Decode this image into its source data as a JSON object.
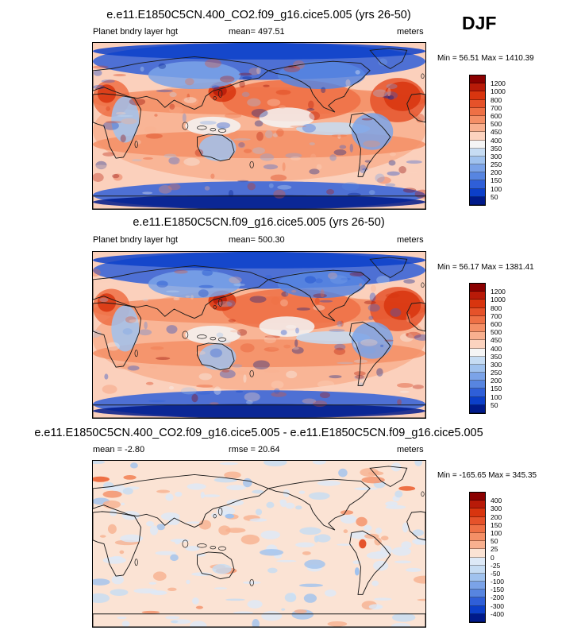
{
  "season": "DJF",
  "land_color": "#1a1a1a",
  "panels": [
    {
      "title": "e.e11.E1850C5CN.400_CO2.f09_g16.cice5.005 (yrs 26-50)",
      "variable": "Planet bndry layer hgt",
      "stat": "mean= 497.51",
      "units": "meters",
      "minmax": "Min =  56.51 Max = 1410.39",
      "kind": "abs"
    },
    {
      "title": "e.e11.E1850C5CN.f09_g16.cice5.005 (yrs 26-50)",
      "variable": "Planet bndry layer hgt",
      "stat": "mean= 500.30",
      "units": "meters",
      "minmax": "Min =  56.17 Max = 1381.41",
      "kind": "abs"
    },
    {
      "title": "e.e11.E1850C5CN.400_CO2.f09_g16.cice5.005 - e.e11.E1850C5CN.f09_g16.cice5.005",
      "variable": "mean =  -2.80",
      "stat": "rmse =  20.64",
      "units": "meters",
      "minmax": "Min = -165.65 Max = 345.35",
      "kind": "diff"
    }
  ],
  "chart_data": [
    {
      "type": "heatmap",
      "title": "e.e11.E1850C5CN.400_CO2.f09_g16.cice5.005 (yrs 26-50)",
      "variable": "Planet bndry layer hgt",
      "units": "meters",
      "mean": 497.51,
      "min": 56.51,
      "max": 1410.39,
      "colorbar_labels": [
        "1200",
        "1000",
        "800",
        "700",
        "600",
        "500",
        "450",
        "400",
        "350",
        "300",
        "250",
        "200",
        "150",
        "100",
        "50"
      ],
      "colorbar_colors": [
        "#8b0000",
        "#b81a08",
        "#d8350f",
        "#e5522a",
        "#ee7045",
        "#f48f66",
        "#f8b08f",
        "#fcd3bf",
        "#f5f5f5",
        "#c6dcf3",
        "#a0c2ee",
        "#7ba3e8",
        "#5785e0",
        "#2f5fd8",
        "#0c3fc9",
        "#001a8a"
      ]
    },
    {
      "type": "heatmap",
      "title": "e.e11.E1850C5CN.f09_g16.cice5.005 (yrs 26-50)",
      "variable": "Planet bndry layer hgt",
      "units": "meters",
      "mean": 500.3,
      "min": 56.17,
      "max": 1381.41,
      "colorbar_labels": [
        "1200",
        "1000",
        "800",
        "700",
        "600",
        "500",
        "450",
        "400",
        "350",
        "300",
        "250",
        "200",
        "150",
        "100",
        "50"
      ],
      "colorbar_colors": [
        "#8b0000",
        "#b81a08",
        "#d8350f",
        "#e5522a",
        "#ee7045",
        "#f48f66",
        "#f8b08f",
        "#fcd3bf",
        "#f5f5f5",
        "#c6dcf3",
        "#a0c2ee",
        "#7ba3e8",
        "#5785e0",
        "#2f5fd8",
        "#0c3fc9",
        "#001a8a"
      ]
    },
    {
      "type": "heatmap",
      "title": "e.e11.E1850C5CN.400_CO2.f09_g16.cice5.005 - e.e11.E1850C5CN.f09_g16.cice5.005",
      "units": "meters",
      "mean": -2.8,
      "rmse": 20.64,
      "min": -165.65,
      "max": 345.35,
      "colorbar_labels": [
        "400",
        "300",
        "200",
        "150",
        "100",
        "50",
        "25",
        "0",
        "-25",
        "-50",
        "-100",
        "-150",
        "-200",
        "-300",
        "-400"
      ],
      "colorbar_colors": [
        "#8b0000",
        "#b81a08",
        "#d8350f",
        "#e5522a",
        "#ee7045",
        "#f48f66",
        "#f8b08f",
        "#fbe3d4",
        "#dde9f7",
        "#c6dcf3",
        "#a0c2ee",
        "#7ba3e8",
        "#5785e0",
        "#2f5fd8",
        "#0c3fc9",
        "#001a8a"
      ]
    }
  ]
}
